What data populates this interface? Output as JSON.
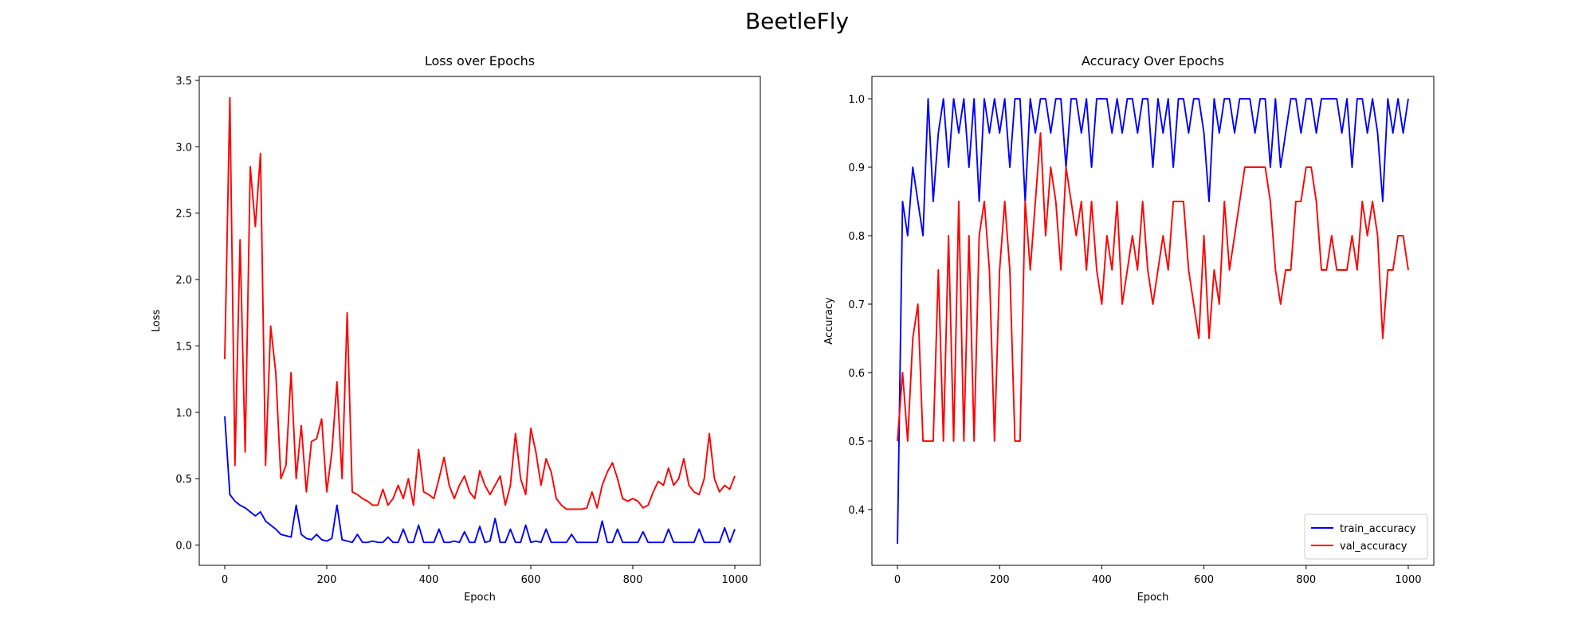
{
  "title": "BeetleFly",
  "chart_data": [
    {
      "type": "line",
      "title": "Loss over Epochs",
      "x_label": "Epoch",
      "y_label": "Loss",
      "x": [
        0,
        10,
        20,
        30,
        40,
        50,
        60,
        70,
        80,
        90,
        100,
        110,
        120,
        130,
        140,
        150,
        160,
        170,
        180,
        190,
        200,
        210,
        220,
        230,
        240,
        250,
        260,
        270,
        280,
        290,
        300,
        310,
        320,
        330,
        340,
        350,
        360,
        370,
        380,
        390,
        400,
        410,
        420,
        430,
        440,
        450,
        460,
        470,
        480,
        490,
        500,
        510,
        520,
        530,
        540,
        550,
        560,
        570,
        580,
        590,
        600,
        610,
        620,
        630,
        640,
        650,
        660,
        670,
        680,
        690,
        700,
        710,
        720,
        730,
        740,
        750,
        760,
        770,
        780,
        790,
        800,
        810,
        820,
        830,
        840,
        850,
        860,
        870,
        880,
        890,
        900,
        910,
        920,
        930,
        940,
        950,
        960,
        970,
        980,
        990,
        1000
      ],
      "xlim": [
        -50,
        1050
      ],
      "xticks": [
        0,
        200,
        400,
        600,
        800,
        1000
      ],
      "ylim": [
        -0.153,
        3.53
      ],
      "yticks": [
        {
          "value": 0,
          "label": "0.0"
        },
        0.5,
        {
          "value": 1,
          "label": "1.0"
        },
        1.5,
        {
          "value": 2,
          "label": "2.0"
        },
        2.5,
        {
          "value": 3,
          "label": "3.0"
        },
        3.5
      ],
      "series": [
        {
          "color": "#0000ff",
          "values": [
            0.97,
            0.38,
            0.33,
            0.3,
            0.28,
            0.25,
            0.22,
            0.25,
            0.18,
            0.15,
            0.12,
            0.08,
            0.07,
            0.06,
            0.3,
            0.08,
            0.05,
            0.04,
            0.08,
            0.04,
            0.03,
            0.05,
            0.3,
            0.04,
            0.03,
            0.02,
            0.08,
            0.02,
            0.02,
            0.03,
            0.02,
            0.02,
            0.06,
            0.02,
            0.02,
            0.12,
            0.02,
            0.02,
            0.15,
            0.02,
            0.02,
            0.02,
            0.12,
            0.02,
            0.02,
            0.03,
            0.02,
            0.1,
            0.02,
            0.02,
            0.14,
            0.02,
            0.03,
            0.2,
            0.02,
            0.02,
            0.12,
            0.02,
            0.02,
            0.15,
            0.02,
            0.03,
            0.02,
            0.12,
            0.02,
            0.02,
            0.02,
            0.02,
            0.08,
            0.02,
            0.02,
            0.02,
            0.02,
            0.02,
            0.18,
            0.02,
            0.02,
            0.12,
            0.02,
            0.02,
            0.02,
            0.02,
            0.1,
            0.02,
            0.02,
            0.02,
            0.02,
            0.12,
            0.02,
            0.02,
            0.02,
            0.02,
            0.02,
            0.12,
            0.02,
            0.02,
            0.02,
            0.02,
            0.13,
            0.02,
            0.12
          ]
        },
        {
          "color": "#ff0000",
          "values": [
            1.4,
            3.37,
            0.6,
            2.3,
            0.7,
            2.85,
            2.4,
            2.95,
            0.6,
            1.65,
            1.3,
            0.5,
            0.6,
            1.3,
            0.5,
            0.9,
            0.4,
            0.78,
            0.8,
            0.95,
            0.4,
            0.7,
            1.23,
            0.5,
            1.75,
            0.4,
            0.38,
            0.35,
            0.33,
            0.3,
            0.3,
            0.42,
            0.3,
            0.35,
            0.45,
            0.35,
            0.5,
            0.3,
            0.72,
            0.4,
            0.38,
            0.35,
            0.5,
            0.66,
            0.45,
            0.35,
            0.45,
            0.52,
            0.4,
            0.35,
            0.56,
            0.45,
            0.38,
            0.45,
            0.52,
            0.3,
            0.45,
            0.84,
            0.5,
            0.38,
            0.88,
            0.7,
            0.45,
            0.65,
            0.55,
            0.35,
            0.3,
            0.27,
            0.27,
            0.27,
            0.27,
            0.28,
            0.4,
            0.28,
            0.45,
            0.55,
            0.62,
            0.5,
            0.35,
            0.33,
            0.35,
            0.33,
            0.28,
            0.3,
            0.4,
            0.48,
            0.45,
            0.58,
            0.45,
            0.5,
            0.65,
            0.45,
            0.4,
            0.38,
            0.5,
            0.84,
            0.5,
            0.4,
            0.45,
            0.42,
            0.52
          ]
        }
      ]
    },
    {
      "type": "line",
      "title": "Accuracy Over Epochs",
      "x_label": "Epoch",
      "y_label": "Accuracy",
      "x": [
        0,
        10,
        20,
        30,
        40,
        50,
        60,
        70,
        80,
        90,
        100,
        110,
        120,
        130,
        140,
        150,
        160,
        170,
        180,
        190,
        200,
        210,
        220,
        230,
        240,
        250,
        260,
        270,
        280,
        290,
        300,
        310,
        320,
        330,
        340,
        350,
        360,
        370,
        380,
        390,
        400,
        410,
        420,
        430,
        440,
        450,
        460,
        470,
        480,
        490,
        500,
        510,
        520,
        530,
        540,
        550,
        560,
        570,
        580,
        590,
        600,
        610,
        620,
        630,
        640,
        650,
        660,
        670,
        680,
        690,
        700,
        710,
        720,
        730,
        740,
        750,
        760,
        770,
        780,
        790,
        800,
        810,
        820,
        830,
        840,
        850,
        860,
        870,
        880,
        890,
        900,
        910,
        920,
        930,
        940,
        950,
        960,
        970,
        980,
        990,
        1000
      ],
      "xlim": [
        -50,
        1050
      ],
      "xticks": [
        0,
        200,
        400,
        600,
        800,
        1000
      ],
      "ylim": [
        0.3185,
        1.0326
      ],
      "yticks": [
        0.4,
        0.5,
        0.6,
        0.7,
        0.8,
        0.9,
        {
          "value": 1,
          "label": "1.0"
        }
      ],
      "legend": "lower right",
      "series": [
        {
          "name": "train_accuracy",
          "color": "#0000ff",
          "values": [
            0.35,
            0.85,
            0.8,
            0.9,
            0.85,
            0.8,
            1.0,
            0.85,
            0.95,
            1.0,
            0.9,
            1.0,
            0.95,
            1.0,
            0.9,
            1.0,
            0.85,
            1.0,
            0.95,
            1.0,
            0.95,
            1.0,
            0.9,
            1.0,
            1.0,
            0.85,
            1.0,
            0.95,
            1.0,
            1.0,
            0.95,
            1.0,
            1.0,
            0.9,
            1.0,
            1.0,
            0.95,
            1.0,
            0.9,
            1.0,
            1.0,
            1.0,
            0.95,
            1.0,
            0.95,
            1.0,
            1.0,
            0.95,
            1.0,
            1.0,
            0.9,
            1.0,
            0.95,
            1.0,
            0.9,
            1.0,
            1.0,
            0.95,
            1.0,
            1.0,
            0.95,
            0.85,
            1.0,
            0.95,
            1.0,
            1.0,
            0.95,
            1.0,
            1.0,
            1.0,
            0.95,
            1.0,
            1.0,
            0.9,
            1.0,
            0.9,
            0.95,
            1.0,
            1.0,
            0.95,
            1.0,
            1.0,
            0.95,
            1.0,
            1.0,
            1.0,
            1.0,
            0.95,
            1.0,
            0.9,
            1.0,
            1.0,
            0.95,
            1.0,
            0.95,
            0.85,
            1.0,
            0.95,
            1.0,
            0.95,
            1.0
          ]
        },
        {
          "name": "val_accuracy",
          "color": "#ff0000",
          "values": [
            0.5,
            0.6,
            0.5,
            0.65,
            0.7,
            0.5,
            0.5,
            0.5,
            0.75,
            0.5,
            0.8,
            0.5,
            0.85,
            0.5,
            0.8,
            0.5,
            0.8,
            0.85,
            0.75,
            0.5,
            0.75,
            0.85,
            0.75,
            0.5,
            0.5,
            0.85,
            0.75,
            0.85,
            0.95,
            0.8,
            0.9,
            0.85,
            0.75,
            0.9,
            0.85,
            0.8,
            0.85,
            0.75,
            0.85,
            0.75,
            0.7,
            0.8,
            0.75,
            0.85,
            0.7,
            0.75,
            0.8,
            0.75,
            0.85,
            0.75,
            0.7,
            0.75,
            0.8,
            0.75,
            0.85,
            0.85,
            0.85,
            0.75,
            0.7,
            0.65,
            0.8,
            0.65,
            0.75,
            0.7,
            0.85,
            0.75,
            0.8,
            0.85,
            0.9,
            0.9,
            0.9,
            0.9,
            0.9,
            0.85,
            0.75,
            0.7,
            0.75,
            0.75,
            0.85,
            0.85,
            0.9,
            0.9,
            0.85,
            0.75,
            0.75,
            0.8,
            0.75,
            0.75,
            0.75,
            0.8,
            0.75,
            0.85,
            0.8,
            0.85,
            0.8,
            0.65,
            0.75,
            0.75,
            0.8,
            0.8,
            0.75
          ]
        }
      ]
    }
  ]
}
